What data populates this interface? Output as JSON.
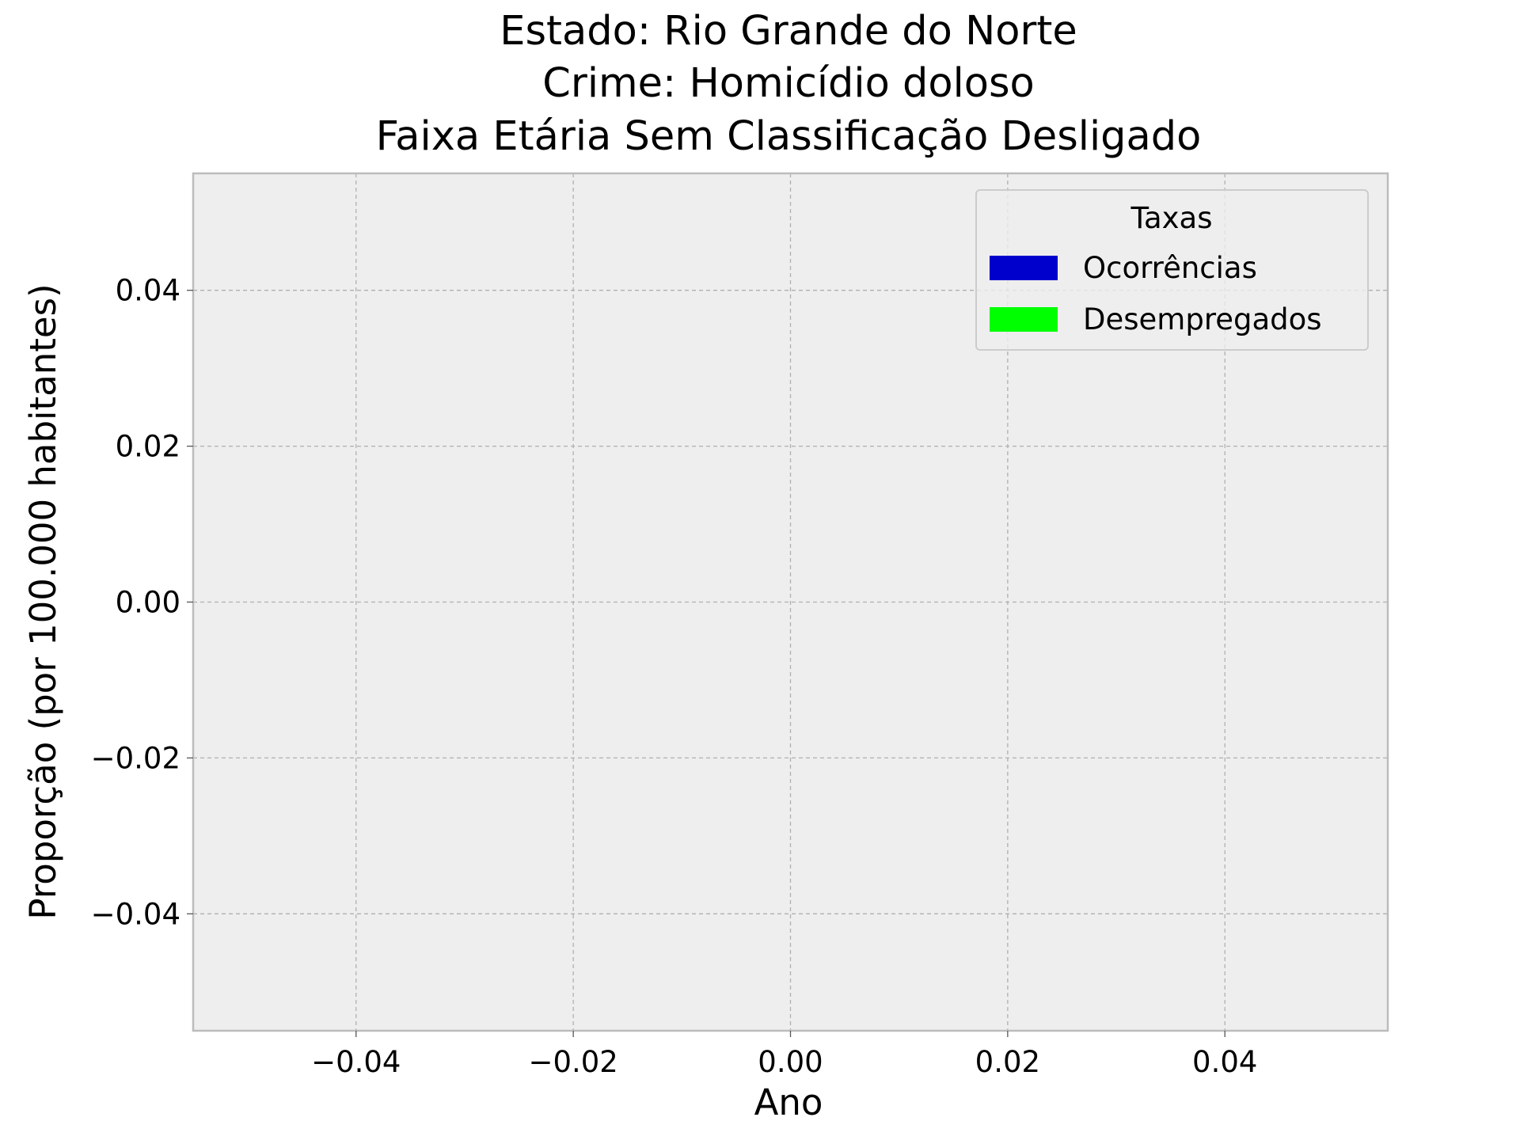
{
  "chart_data": {
    "type": "bar",
    "title_lines": [
      "Estado: Rio Grande do Norte",
      "Crime: Homicídio doloso",
      "Faixa Etária Sem Classificação   Desligado"
    ],
    "xlabel": "Ano",
    "ylabel": "Proporção (por 100.000 habitantes)",
    "xlim": [
      -0.055,
      0.055
    ],
    "ylim": [
      -0.055,
      0.055
    ],
    "x_ticks": [
      -0.04,
      -0.02,
      0.0,
      0.02,
      0.04
    ],
    "x_tick_labels": [
      "−0.04",
      "−0.02",
      "0.00",
      "0.02",
      "0.04"
    ],
    "y_ticks": [
      -0.04,
      -0.02,
      0.0,
      0.02,
      0.04
    ],
    "y_tick_labels": [
      "−0.04",
      "−0.02",
      "0.00",
      "0.02",
      "0.04"
    ],
    "grid": true,
    "legend": {
      "title": "Taxas",
      "placement": "top-right",
      "entries": [
        {
          "label": "Ocorrências",
          "color": "#0000cc"
        },
        {
          "label": "Desempregados",
          "color": "#00ff00"
        }
      ]
    },
    "series": [
      {
        "name": "Ocorrências",
        "values": []
      },
      {
        "name": "Desempregados",
        "values": []
      }
    ],
    "colors": {
      "plot_background": "#eeeeee",
      "axes_border": "#bcbcbc"
    }
  }
}
